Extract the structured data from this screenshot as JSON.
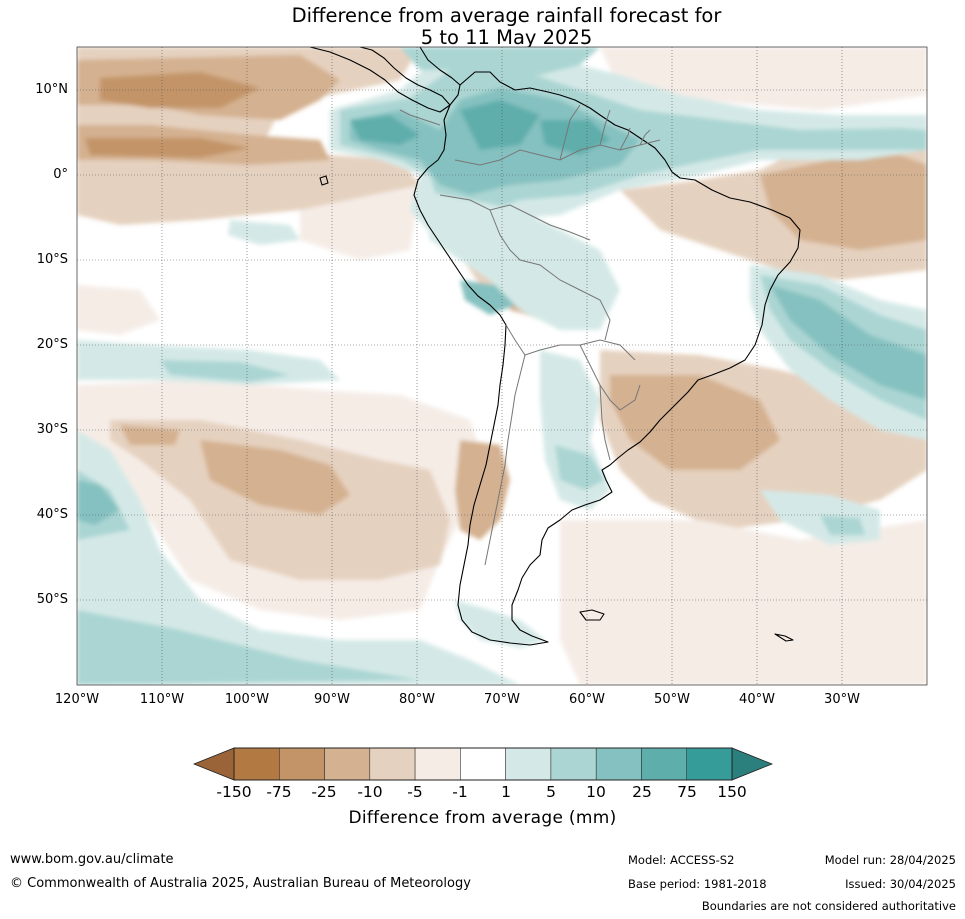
{
  "title_line1": "Difference from average rainfall forecast for",
  "title_line2": "5 to 11 May 2025",
  "lat_labels": [
    "10°N",
    "0°",
    "10°S",
    "20°S",
    "30°S",
    "40°S",
    "50°S"
  ],
  "lon_labels": [
    "120°W",
    "110°W",
    "100°W",
    "90°W",
    "80°W",
    "70°W",
    "60°W",
    "50°W",
    "40°W",
    "30°W"
  ],
  "colorbar": {
    "ticks": [
      "-150",
      "-75",
      "-25",
      "-10",
      "-5",
      "-1",
      "1",
      "5",
      "10",
      "25",
      "75",
      "150"
    ],
    "colors": [
      "#9a6438",
      "#b27a42",
      "#c39467",
      "#d4b190",
      "#e5d1bf",
      "#f5ece6",
      "#ffffff",
      "#d4e9e7",
      "#aad5d3",
      "#85c1c0",
      "#5eaeac",
      "#359c99",
      "#2b7f7c"
    ],
    "title": "Difference from average (mm)"
  },
  "footer": {
    "url": "www.bom.gov.au/climate",
    "copyright": "© Commonwealth of Australia 2025, Australian Bureau of Meteorology",
    "model": "Model: ACCESS-S2",
    "base_period": "Base period: 1981-2018",
    "model_run": "Model run: 28/04/2025",
    "issued": "Issued: 30/04/2025",
    "disclaimer": "Boundaries are not considered authoritative"
  }
}
